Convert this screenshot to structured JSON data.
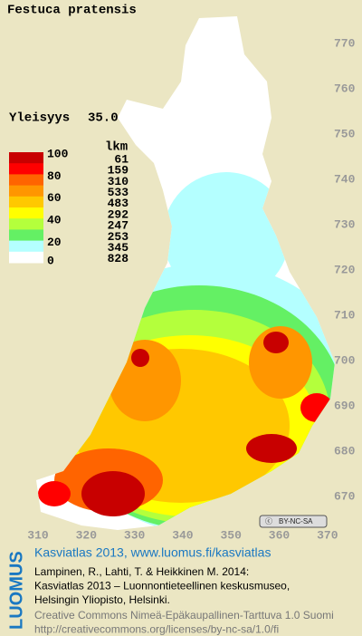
{
  "title": "Festuca pratensis",
  "frequency": {
    "label": "Yleisyys",
    "value": "35.0"
  },
  "legend": {
    "header": "lkm",
    "scale_labels": [
      "100",
      "80",
      "60",
      "40",
      "20",
      "0"
    ],
    "bands": [
      {
        "color": "#c80000",
        "count": "61"
      },
      {
        "color": "#ff0000",
        "count": "159"
      },
      {
        "color": "#ff6400",
        "count": "310"
      },
      {
        "color": "#ff9600",
        "count": "533"
      },
      {
        "color": "#ffc800",
        "count": "483"
      },
      {
        "color": "#ffff00",
        "count": "292"
      },
      {
        "color": "#b4ff3c",
        "count": "247"
      },
      {
        "color": "#64f064",
        "count": "253"
      },
      {
        "color": "#b4ffff",
        "count": "345"
      },
      {
        "color": "#ffffff",
        "count": "828"
      }
    ]
  },
  "y_labels": [
    "770",
    "760",
    "750",
    "740",
    "730",
    "720",
    "710",
    "700",
    "690",
    "680",
    "670"
  ],
  "x_labels": [
    "310",
    "320",
    "330",
    "340",
    "350",
    "360",
    "370"
  ],
  "license_badge": "BY-NC-SA",
  "footer": {
    "logo": "LUOMUS",
    "heading": "Kasviatlas 2013, www.luomus.fi/kasviatlas",
    "citation": [
      "Lampinen, R., Lahti, T. & Heikkinen M. 2014:",
      "Kasviatlas 2013 – Luonnontieteellinen keskusmuseo,",
      "Helsingin Yliopisto, Helsinki."
    ],
    "license": [
      "Creative Commons Nimeä-Epäkaupallinen-Tarttuva 1.0 Suomi",
      "http://creativecommons.org/licenses/by-nc-sa/1.0/fi"
    ]
  }
}
